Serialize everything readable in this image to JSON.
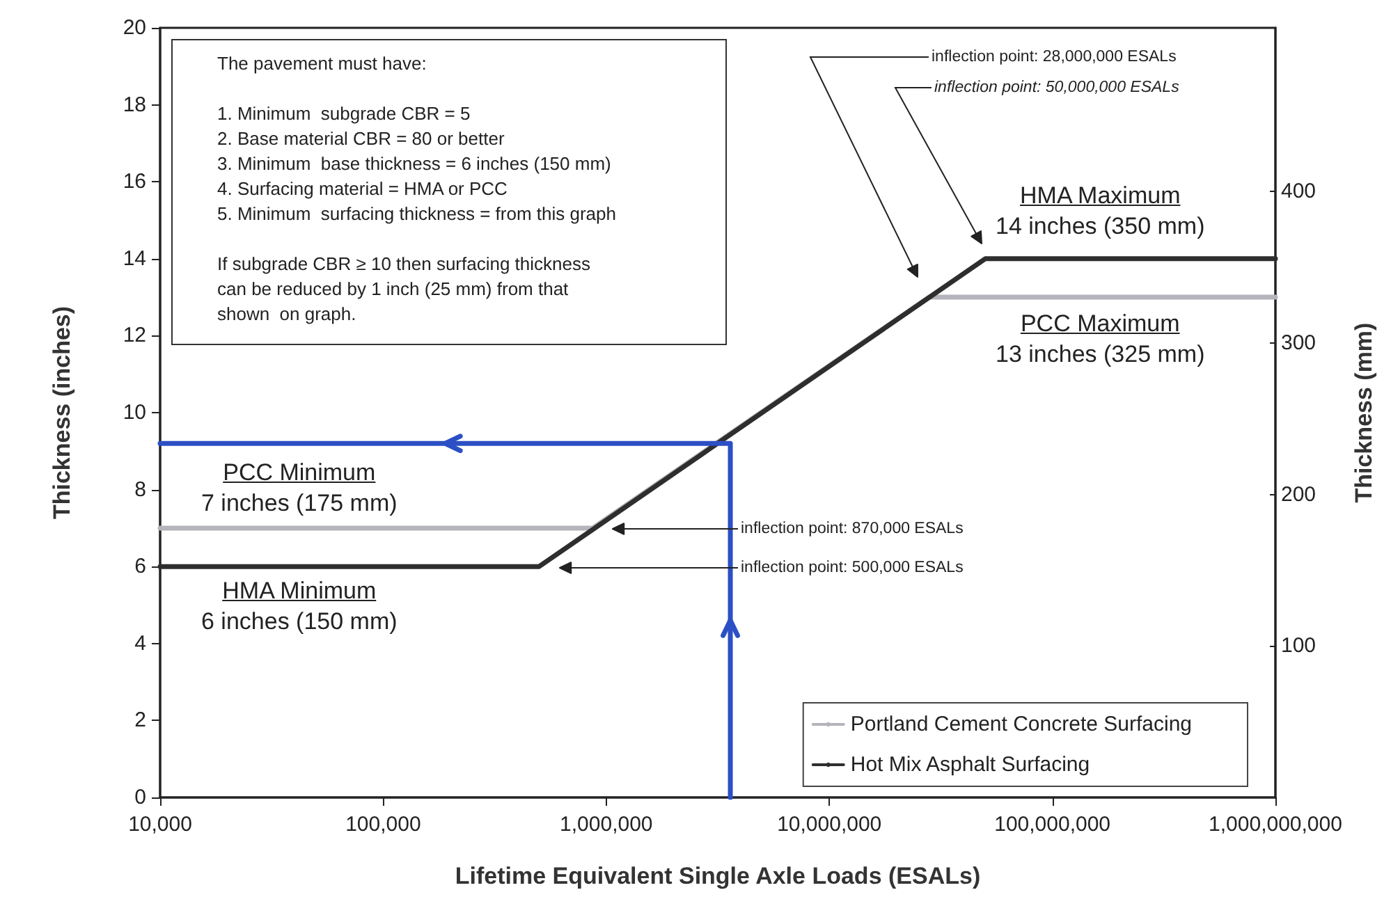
{
  "chart_data": {
    "type": "line",
    "xlabel": "Lifetime Equivalent Single Axle Loads (ESALs)",
    "ylabel": "Thickness (inches)",
    "y2label": "Thickness (mm)",
    "log": "x",
    "xlim": [
      10000,
      1000000000
    ],
    "xticks": [
      {
        "value": 10000,
        "label": "10,000"
      },
      {
        "value": 100000,
        "label": "100,000"
      },
      {
        "value": 1000000,
        "label": "1,000,000"
      },
      {
        "value": 10000000,
        "label": "10,000,000"
      },
      {
        "value": 100000000,
        "label": "100,000,000"
      },
      {
        "value": 1000000000,
        "label": "1,000,000,000"
      }
    ],
    "ylim": [
      0,
      20
    ],
    "yticks": [
      0,
      2,
      4,
      6,
      8,
      10,
      12,
      14,
      16,
      18,
      20
    ],
    "y2lim": [
      0,
      508
    ],
    "y2ticks": [
      100,
      200,
      300,
      400
    ],
    "grid": false,
    "legend": "bottom right",
    "series": [
      {
        "name": "Portland Cement Concrete Surfacing",
        "color": "#b4b4bc",
        "x": [
          10000,
          870000,
          28000000,
          1000000000
        ],
        "values": [
          7,
          7,
          13,
          13
        ]
      },
      {
        "name": "Hot Mix Asphalt Surfacing",
        "color": "#2e2e2e",
        "x": [
          10000,
          500000,
          50000000,
          1000000000
        ],
        "values": [
          6,
          6,
          14,
          14
        ]
      },
      {
        "color": "#2b4fc4",
        "x": [
          3600000,
          3600000,
          10000
        ],
        "values": [
          0,
          9.2,
          9.2
        ]
      }
    ],
    "annotations": [
      "The pavement must have:\n\n1. Minimum  subgrade CBR = 5\n2. Base material CBR = 80 or better\n3. Minimum  base thickness = 6 inches (150 mm)\n4. Surfacing material = HMA or PCC\n5. Minimum  surfacing thickness = from this graph\n\nIf subgrade CBR ≥ 10 then surfacing thickness\ncan be reduced by 1 inch (25 mm) from that\nshown  on graph.",
      "inflection point: 870,000 ESALs",
      "inflection point: 500,000 ESALs",
      "inflection point: 28,000,000 ESALs",
      "inflection point: 50,000,000 ESALs",
      "HMA Maximum\n14 inches (350 mm)",
      "PCC Maximum\n13 inches (325 mm)",
      "PCC Minimum\n7 inches (175 mm)",
      "HMA Minimum\n6 inches (150 mm)"
    ]
  }
}
